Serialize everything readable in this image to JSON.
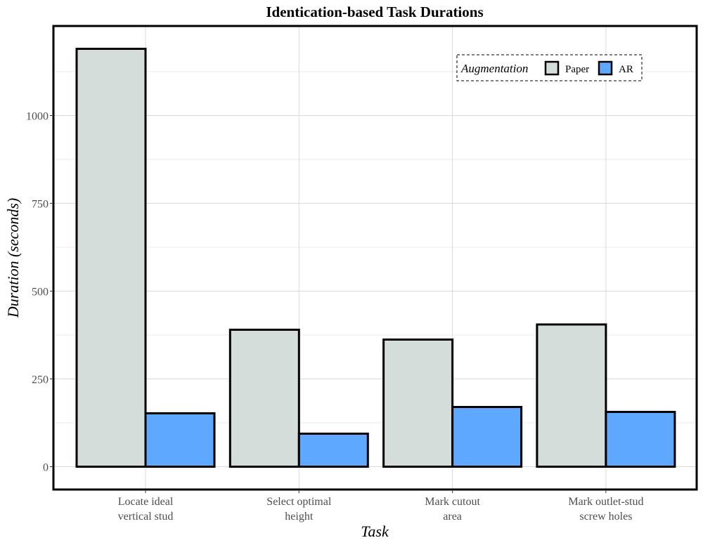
{
  "chart_data": {
    "type": "bar",
    "title": "Identication-based Task Durations",
    "xlabel": "Task",
    "ylabel": "Duration (seconds)",
    "categories": [
      [
        "Locate ideal",
        "vertical stud"
      ],
      [
        "Select optimal",
        "height"
      ],
      [
        "Mark cutout",
        "area"
      ],
      [
        "Mark outlet-stud",
        "screw holes"
      ]
    ],
    "series": [
      {
        "name": "Paper",
        "color": "#d5dddb",
        "values": [
          1190,
          390,
          362,
          405
        ]
      },
      {
        "name": "AR",
        "color": "#5ea8ff",
        "values": [
          152,
          94,
          170,
          156
        ]
      }
    ],
    "ylim": [
      -65,
      1255
    ],
    "yticks": [
      0,
      250,
      500,
      750,
      1000
    ],
    "grid": true,
    "legend": {
      "title": "Augmentation",
      "position": "top-right"
    }
  }
}
